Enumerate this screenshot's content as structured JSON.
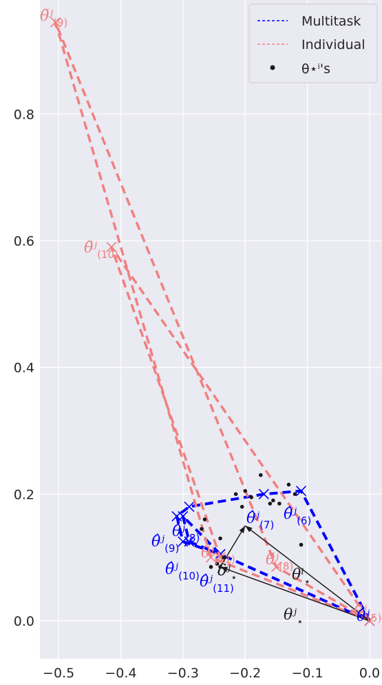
{
  "chart_data": {
    "type": "line",
    "xlim": [
      -0.53,
      0.02
    ],
    "ylim": [
      -0.06,
      0.98
    ],
    "xticks": [
      -0.5,
      -0.4,
      -0.3,
      -0.2,
      -0.1,
      0.0
    ],
    "xtick_labels": [
      "−0.5",
      "−0.4",
      "−0.3",
      "−0.2",
      "−0.1",
      "0.0"
    ],
    "yticks": [
      0.0,
      0.2,
      0.4,
      0.6,
      0.8
    ],
    "ytick_labels": [
      "0.0",
      "0.2",
      "0.4",
      "0.6",
      "0.8"
    ],
    "grid": true,
    "legend_position": "top-right",
    "series": [
      {
        "name": "Multitask",
        "style": "dashed",
        "color": "#0000ff",
        "x": [
          0.0,
          -0.11,
          -0.17,
          -0.29,
          -0.31,
          -0.3,
          -0.24,
          -0.29,
          -0.3,
          -0.24,
          0.0
        ],
        "y": [
          0.0,
          0.205,
          0.2,
          0.18,
          0.165,
          0.125,
          0.105,
          0.125,
          0.165,
          0.105,
          0.0
        ]
      },
      {
        "name": "Individual",
        "style": "dashed",
        "color": "#f08080",
        "x": [
          0.0,
          -0.15,
          -0.505,
          -0.255,
          0.0,
          -0.415,
          -0.24
        ],
        "y": [
          0.0,
          0.085,
          0.945,
          0.1,
          0.0,
          0.59,
          0.1
        ]
      },
      {
        "name": "θ⋆ⁱ's",
        "style": "points",
        "color": "#1a1a1a",
        "x": [
          -0.175,
          -0.2,
          -0.13,
          -0.16,
          -0.205,
          -0.215,
          -0.145,
          -0.12,
          -0.155,
          -0.19,
          -0.24,
          -0.265,
          -0.245,
          -0.24,
          -0.235,
          -0.27,
          -0.11,
          -0.255
        ],
        "y": [
          0.23,
          0.205,
          0.215,
          0.185,
          0.18,
          0.2,
          0.185,
          0.2,
          0.19,
          0.195,
          0.13,
          0.16,
          0.09,
          0.085,
          0.1,
          0.145,
          0.12,
          0.085
        ]
      }
    ],
    "arrows": [
      {
        "from": [
          0.0,
          0.0
        ],
        "to": [
          -0.2,
          0.15
        ]
      },
      {
        "from": [
          0.0,
          0.0
        ],
        "to": [
          -0.24,
          0.085
        ]
      },
      {
        "from": [
          -0.24,
          0.085
        ],
        "to": [
          -0.2,
          0.15
        ]
      }
    ],
    "annotations": {
      "red": [
        {
          "text": "θ̃",
          "sub": "(9)",
          "x": -0.515,
          "y": 0.945
        },
        {
          "text": "θ̃",
          "sub": "(10)",
          "x": -0.415,
          "y": 0.59
        },
        {
          "text": "θ̃",
          "sub": "(11)",
          "x": -0.25,
          "y": 0.105
        },
        {
          "text": "θ̃",
          "sub": "(8)",
          "x": -0.15,
          "y": 0.09
        },
        {
          "text": "θ̃",
          "sub": "(5)",
          "x": -0.002,
          "y": 0.01
        }
      ],
      "blue": [
        {
          "text": "θ̂",
          "sub": "(8)",
          "x": -0.305,
          "y": 0.15
        },
        {
          "text": "θ̂",
          "sub": "(9)",
          "x": -0.335,
          "y": 0.135
        },
        {
          "text": "θ̂",
          "sub": "(10)",
          "x": -0.315,
          "y": 0.085
        },
        {
          "text": "θ̂",
          "sub": "(11)",
          "x": -0.255,
          "y": 0.07
        },
        {
          "text": "θ̂",
          "sub": "(7)",
          "x": -0.175,
          "y": 0.165
        },
        {
          "text": "θ̂",
          "sub": "(6)",
          "x": -0.115,
          "y": 0.175
        },
        {
          "text": "θ̂",
          "sub": "",
          "x": 0.0,
          "y": 0.01
        }
      ],
      "black": [
        {
          "text": "θ",
          "sub": "⋆",
          "x": -0.3,
          "y": 0.0
        },
        {
          "text": "θ",
          "sub": "⋆",
          "x": -0.285,
          "y": 0.0
        },
        {
          "text": "δ",
          "sub": "⋆",
          "x": -0.235,
          "y": 0.095
        }
      ]
    }
  },
  "labels": {
    "legend_multitask": "Multitask",
    "legend_individual": "Individual",
    "legend_points": "θ⋆ⁱ's",
    "ann_theta_tilde_9": "θ̃ʲ",
    "ann_theta_tilde_9_sub": "(9)",
    "ann_theta_tilde_10": "θ̃ʲ",
    "ann_theta_tilde_10_sub": "(10)",
    "ann_theta_tilde_11": "θ̃ʲ",
    "ann_theta_tilde_11_sub": "(11)",
    "ann_theta_tilde_8": "θ̃ʲ",
    "ann_theta_tilde_8_sub": "(8)",
    "ann_theta_tilde_5": "θ̃ʲ",
    "ann_theta_tilde_5_sub": "(5)",
    "ann_theta_hat_8": "θ̂ʲ",
    "ann_theta_hat_8_sub": "(8)",
    "ann_theta_hat_9": "θ̂ʲ",
    "ann_theta_hat_9_sub": "(9)",
    "ann_theta_hat_10": "θ̂ʲ",
    "ann_theta_hat_10_sub": "(10)",
    "ann_theta_hat_11": "θ̂ʲ",
    "ann_theta_hat_11_sub": "(11)",
    "ann_theta_hat_7": "θ̂ʲ",
    "ann_theta_hat_7_sub": "(7)",
    "ann_theta_hat_6": "θ̂ʲ",
    "ann_theta_hat_6_sub": "(6)",
    "ann_theta_hat_5": "θ̂ʲ",
    "ann_theta_star_a": "θⁱ",
    "ann_theta_star_a_sub": "⋆",
    "ann_theta_star_b": "θʲ",
    "ann_theta_star_b_sub": "⋆",
    "ann_delta": "δʲ",
    "ann_delta_sub": "⋆"
  },
  "colors": {
    "background": "#eaeaf2",
    "grid": "#ffffff",
    "multitask": "#0000ff",
    "individual": "#f08080",
    "points": "#1a1a1a"
  }
}
